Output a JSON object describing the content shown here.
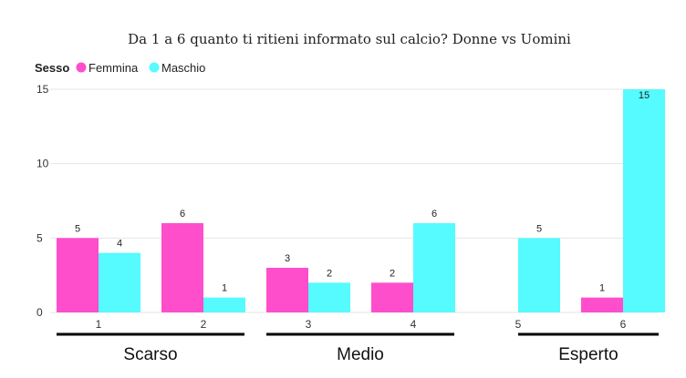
{
  "chart_data": {
    "type": "bar",
    "title": "Da 1 a 6 quanto ti ritieni informato sul calcio? Donne vs Uomini",
    "legend": {
      "title": "Sesso",
      "position": "top-left"
    },
    "categories": [
      "1",
      "2",
      "3",
      "4",
      "5",
      "6"
    ],
    "groups": [
      {
        "label": "Scarso",
        "categories": [
          "1",
          "2"
        ]
      },
      {
        "label": "Medio",
        "categories": [
          "3",
          "4"
        ]
      },
      {
        "label": "Esperto",
        "categories": [
          "5",
          "6"
        ]
      }
    ],
    "series": [
      {
        "name": "Femmina",
        "color": "#ff4ecb",
        "values": [
          5,
          6,
          3,
          2,
          null,
          1
        ]
      },
      {
        "name": "Maschio",
        "color": "#55fbff",
        "values": [
          4,
          1,
          2,
          6,
          5,
          15
        ]
      }
    ],
    "ylim": [
      0,
      15
    ],
    "yticks": [
      0,
      5,
      10,
      15
    ],
    "grid": true,
    "data_labels": true
  }
}
